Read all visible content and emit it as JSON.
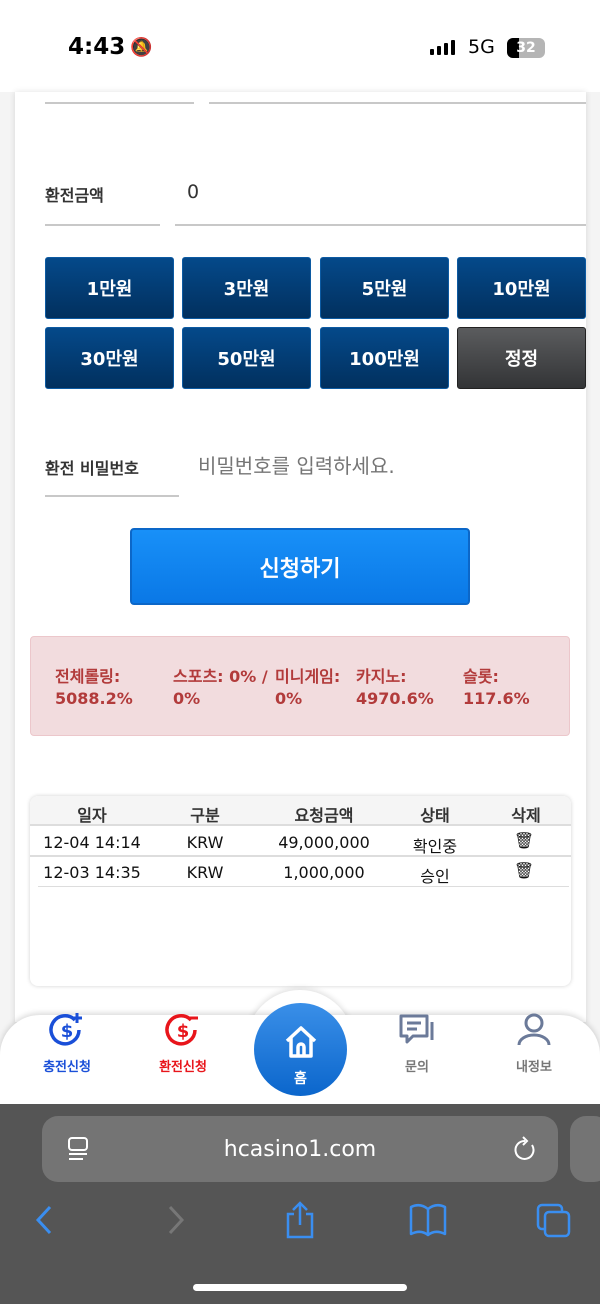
{
  "status_bar": {
    "time": "4:43",
    "network": "5G",
    "battery": "32"
  },
  "form": {
    "amount_label": "환전금액",
    "amount_value": "0",
    "quick_amounts": [
      "1만원",
      "3만원",
      "5만원",
      "10만원",
      "30만원",
      "50만원",
      "100만원"
    ],
    "reset_label": "정정",
    "password_label": "환전 비밀번호",
    "password_placeholder": "비밀번호를 입력하세요.",
    "submit_label": "신청하기"
  },
  "rolling": {
    "total_label": "전체롤링:",
    "total_value": "5088.2%",
    "sports_label": "스포츠: 0% /",
    "sports_value": "0%",
    "mini_label": "미니게임:",
    "mini_value": "0%",
    "casino_label": "카지노:",
    "casino_value": "4970.6%",
    "slot_label": "슬롯:",
    "slot_value": "117.6%"
  },
  "table": {
    "headers": [
      "일자",
      "구분",
      "요청금액",
      "상태",
      "삭제"
    ],
    "rows": [
      {
        "date": "12-04 14:14",
        "type": "KRW",
        "amount": "49,000,000",
        "status": "확인중"
      },
      {
        "date": "12-03 14:35",
        "type": "KRW",
        "amount": "1,000,000",
        "status": "승인"
      }
    ]
  },
  "nav": {
    "items": [
      {
        "label": "충전신청",
        "color": "#1a4fd8"
      },
      {
        "label": "환전신청",
        "color": "#e8151b"
      },
      {
        "label": "홈",
        "color": "#ffffff"
      },
      {
        "label": "문의",
        "color": "#777777"
      },
      {
        "label": "내정보",
        "color": "#777777"
      }
    ]
  },
  "browser": {
    "url": "hcasino1.com"
  }
}
